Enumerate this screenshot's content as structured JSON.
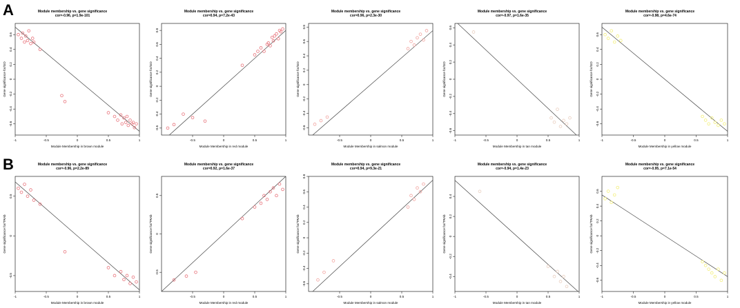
{
  "panels": {
    "a": "A",
    "b": "B"
  },
  "charts": [
    {
      "title": "Module membership vs. gene significance",
      "subtitle": "cor=-0.96, p=1.9e-101",
      "xlabel": "Module Membership in brown module",
      "ylabel": "Gene significance for/GD",
      "xlim": [
        -1,
        1
      ],
      "ylim": [
        -0.75,
        0.75
      ],
      "xticks": [
        -1,
        -0.5,
        0,
        0.5,
        1
      ],
      "yticks": [
        -0.6,
        -0.4,
        -0.2,
        0,
        0.2,
        0.4,
        0.6
      ],
      "color": "#e8747c",
      "slope": -0.7,
      "intercept": 0.0
    },
    {
      "title": "Module membership vs. gene significance",
      "subtitle": "cor=0.94, p=7.2e-43",
      "xlabel": "Module Membership in red module",
      "ylabel": "Gene significance for/GD",
      "xlim": [
        -1,
        1
      ],
      "ylim": [
        -0.7,
        0.9
      ],
      "xticks": [
        -0.5,
        0,
        0.5,
        1
      ],
      "yticks": [
        -0.6,
        -0.4,
        -0.2,
        0,
        0.2,
        0.4,
        0.6,
        0.8
      ],
      "color": "#e8747c",
      "slope": 0.8,
      "intercept": 0.0
    },
    {
      "title": "Module membership vs. gene significance",
      "subtitle": "cor=0.96, p=2.3e-30",
      "xlabel": "Module Membership in salmon module",
      "ylabel": "Gene significance for/GD",
      "xlim": [
        -1,
        1
      ],
      "ylim": [
        -0.7,
        0.85
      ],
      "xticks": [
        -0.5,
        0,
        0.5,
        1
      ],
      "yticks": [
        -0.6,
        -0.4,
        -0.2,
        0,
        0.2,
        0.4,
        0.6,
        0.8
      ],
      "color": "#f2a4a0",
      "slope": 0.75,
      "intercept": 0.0
    },
    {
      "title": "Module membership vs. gene significance",
      "subtitle": "cor=-0.97, p=1.6e-35",
      "xlabel": "Module Membership in tan module",
      "ylabel": "Gene significance for/GD",
      "xlim": [
        -1,
        1
      ],
      "ylim": [
        -0.65,
        0.65
      ],
      "xticks": [
        -1,
        -0.5,
        0,
        0.5,
        1
      ],
      "yticks": [
        -0.6,
        -0.4,
        -0.2,
        0,
        0.2,
        0.4,
        0.6
      ],
      "color": "#e9cfc0",
      "slope": -0.68,
      "intercept": 0.0
    },
    {
      "title": "Module membership vs. gene significance",
      "subtitle": "cor=-0.98, p=4.6e-74",
      "xlabel": "Module Membership in yellow module",
      "ylabel": "Gene significance for/GD",
      "xlim": [
        -1,
        1
      ],
      "ylim": [
        -0.75,
        0.75
      ],
      "xticks": [
        -1,
        -0.5,
        0,
        0.5,
        1
      ],
      "yticks": [
        -0.6,
        -0.4,
        -0.2,
        0,
        0.2,
        0.4,
        0.6
      ],
      "color": "#f3ef7a",
      "slope": -0.7,
      "intercept": 0.0
    },
    {
      "title": "Module membership vs. gene significance",
      "subtitle": "cor=-0.96, p=2.2e-89",
      "xlabel": "Module Membership in brown module",
      "ylabel": "Gene significance for/TRAb",
      "xlim": [
        -1,
        1
      ],
      "ylim": [
        -0.7,
        0.75
      ],
      "xticks": [
        -1,
        -0.5,
        0,
        0.5,
        1
      ],
      "yticks": [
        -0.5,
        0,
        0.5
      ],
      "color": "#e8747c",
      "slope": -0.68,
      "intercept": 0.0
    },
    {
      "title": "Module membership vs. gene significance",
      "subtitle": "cor=0.92, p=1.6e-37",
      "xlabel": "Module Membership in red module",
      "ylabel": "Gene significance for/TRAb",
      "xlim": [
        -1,
        1
      ],
      "ylim": [
        -0.75,
        0.75
      ],
      "xticks": [
        -0.5,
        0,
        0.5,
        1
      ],
      "yticks": [
        -0.5,
        0,
        0.5
      ],
      "color": "#e8747c",
      "slope": 0.75,
      "intercept": 0.0
    },
    {
      "title": "Module membership vs. gene significance",
      "subtitle": "cor=0.94, p=9.3e-21",
      "xlabel": "Module Membership in salmon module",
      "ylabel": "Gene significance for/TRAb",
      "xlim": [
        -1,
        1
      ],
      "ylim": [
        -0.7,
        0.8
      ],
      "xticks": [
        -0.5,
        0,
        0.5,
        1
      ],
      "yticks": [
        -0.6,
        -0.4,
        -0.2,
        0,
        0.2,
        0.4,
        0.6,
        0.8
      ],
      "color": "#f2a4a0",
      "slope": 0.75,
      "intercept": 0.0
    },
    {
      "title": "Module membership vs. gene significance",
      "subtitle": "cor=-0.94, p=1.4e-23",
      "xlabel": "Module Membership in tan module",
      "ylabel": "Gene significance for/TRAb",
      "xlim": [
        -1,
        1
      ],
      "ylim": [
        -0.55,
        0.6
      ],
      "xticks": [
        -1,
        -0.5,
        0,
        0.5,
        1
      ],
      "yticks": [
        -0.4,
        -0.2,
        0,
        0.2,
        0.4
      ],
      "color": "#e9cfc0",
      "slope": -0.56,
      "intercept": 0.0
    },
    {
      "title": "Module membership vs. gene significance",
      "subtitle": "cor=-0.95, p=7.1e-54",
      "xlabel": "Module Membership in yellow module",
      "ylabel": "Gene significance for/TRAb",
      "xlim": [
        -1,
        1
      ],
      "ylim": [
        -0.75,
        0.8
      ],
      "xticks": [
        -1,
        -0.5,
        0,
        0.5,
        1
      ],
      "yticks": [
        -0.6,
        -0.4,
        -0.2,
        0,
        0.2,
        0.4,
        0.6
      ],
      "color": "#f3ef7a",
      "slope": -0.55,
      "intercept": 0.0
    }
  ],
  "chart_data": [
    {
      "type": "scatter",
      "series": [
        {
          "x": [
            -0.95,
            -0.9,
            -0.88,
            -0.85,
            -0.83,
            -0.8,
            -0.78,
            -0.75,
            -0.72,
            -0.7,
            -0.6,
            -0.25,
            -0.2,
            0.5,
            0.6,
            0.65,
            0.7,
            0.72,
            0.75,
            0.78,
            0.8,
            0.82,
            0.85,
            0.88,
            0.9,
            0.92,
            0.95
          ],
          "y": [
            0.6,
            0.55,
            0.62,
            0.5,
            0.58,
            0.52,
            0.65,
            0.48,
            0.55,
            0.5,
            0.4,
            -0.22,
            -0.3,
            -0.45,
            -0.5,
            -0.55,
            -0.48,
            -0.6,
            -0.52,
            -0.58,
            -0.5,
            -0.62,
            -0.55,
            -0.6,
            -0.58,
            -0.65,
            -0.6
          ]
        }
      ],
      "trend_line": {
        "slope": -0.7,
        "intercept": 0.0
      }
    },
    {
      "type": "scatter",
      "series": [
        {
          "x": [
            -0.9,
            -0.8,
            -0.65,
            -0.5,
            -0.3,
            0.3,
            0.5,
            0.55,
            0.6,
            0.65,
            0.7,
            0.72,
            0.75,
            0.78,
            0.8,
            0.82,
            0.85,
            0.88,
            0.9,
            0.92,
            0.95
          ],
          "y": [
            -0.6,
            -0.55,
            -0.4,
            -0.45,
            -0.5,
            0.3,
            0.45,
            0.5,
            0.55,
            0.5,
            0.6,
            0.62,
            0.58,
            0.7,
            0.65,
            0.72,
            0.75,
            0.68,
            0.8,
            0.78,
            0.82
          ]
        }
      ],
      "trend_line": {
        "slope": 0.8,
        "intercept": 0.0
      }
    },
    {
      "type": "scatter",
      "series": [
        {
          "x": [
            -0.9,
            -0.8,
            -0.7,
            0.6,
            0.65,
            0.7,
            0.75,
            0.8,
            0.85,
            0.9
          ],
          "y": [
            -0.55,
            -0.5,
            -0.45,
            0.5,
            0.6,
            0.55,
            0.65,
            0.7,
            0.62,
            0.75
          ]
        }
      ],
      "trend_line": {
        "slope": 0.75,
        "intercept": 0.0
      }
    },
    {
      "type": "scatter",
      "series": [
        {
          "x": [
            -0.7,
            0.55,
            0.6,
            0.65,
            0.7,
            0.75,
            0.8,
            0.85
          ],
          "y": [
            0.55,
            -0.45,
            -0.5,
            -0.35,
            -0.55,
            -0.48,
            -0.52,
            -0.45
          ]
        }
      ],
      "trend_line": {
        "slope": -0.68,
        "intercept": 0.0
      }
    },
    {
      "type": "scatter",
      "series": [
        {
          "x": [
            -0.95,
            -0.9,
            -0.85,
            -0.8,
            -0.75,
            -0.7,
            0.6,
            0.65,
            0.7,
            0.75,
            0.8,
            0.85,
            0.9,
            0.95
          ],
          "y": [
            0.6,
            0.55,
            0.65,
            0.5,
            0.58,
            0.52,
            -0.5,
            -0.55,
            -0.6,
            -0.52,
            -0.58,
            -0.62,
            -0.55,
            -0.6
          ]
        }
      ],
      "trend_line": {
        "slope": -0.7,
        "intercept": 0.0
      }
    },
    {
      "type": "scatter",
      "series": [
        {
          "x": [
            -0.95,
            -0.9,
            -0.85,
            -0.8,
            -0.75,
            -0.7,
            -0.6,
            -0.2,
            0.5,
            0.6,
            0.7,
            0.75,
            0.8,
            0.85,
            0.9,
            0.95
          ],
          "y": [
            0.6,
            0.55,
            0.65,
            0.5,
            0.58,
            0.45,
            0.4,
            -0.2,
            -0.4,
            -0.5,
            -0.45,
            -0.55,
            -0.5,
            -0.6,
            -0.52,
            -0.58
          ]
        }
      ],
      "trend_line": {
        "slope": -0.68,
        "intercept": 0.0
      }
    },
    {
      "type": "scatter",
      "series": [
        {
          "x": [
            -0.8,
            -0.6,
            -0.45,
            0.3,
            0.5,
            0.6,
            0.65,
            0.7,
            0.75,
            0.8,
            0.85,
            0.9,
            0.95
          ],
          "y": [
            -0.6,
            -0.55,
            -0.5,
            0.2,
            0.35,
            0.4,
            0.5,
            0.45,
            0.55,
            0.6,
            0.5,
            0.65,
            0.58
          ]
        }
      ],
      "trend_line": {
        "slope": 0.75,
        "intercept": 0.0
      }
    },
    {
      "type": "scatter",
      "series": [
        {
          "x": [
            -0.85,
            -0.75,
            -0.6,
            0.6,
            0.65,
            0.7,
            0.75,
            0.8,
            0.85
          ],
          "y": [
            -0.55,
            -0.45,
            -0.3,
            0.4,
            0.55,
            0.5,
            0.65,
            0.6,
            0.7
          ]
        }
      ],
      "trend_line": {
        "slope": 0.75,
        "intercept": 0.0
      }
    },
    {
      "type": "scatter",
      "series": [
        {
          "x": [
            -0.6,
            0.5,
            0.6,
            0.65,
            0.7,
            0.75,
            0.8
          ],
          "y": [
            0.45,
            -0.3,
            -0.4,
            -0.35,
            -0.45,
            -0.4,
            -0.5
          ]
        }
      ],
      "trend_line": {
        "slope": -0.56,
        "intercept": 0.0
      }
    },
    {
      "type": "scatter",
      "series": [
        {
          "x": [
            -0.95,
            -0.9,
            -0.85,
            -0.8,
            -0.75,
            0.6,
            0.65,
            0.7,
            0.75,
            0.8,
            0.85,
            0.9,
            0.95
          ],
          "y": [
            0.5,
            0.6,
            0.45,
            0.55,
            0.65,
            -0.35,
            -0.4,
            -0.45,
            -0.5,
            -0.55,
            -0.45,
            -0.6,
            -0.5
          ]
        }
      ],
      "trend_line": {
        "slope": -0.55,
        "intercept": 0.0
      }
    }
  ]
}
